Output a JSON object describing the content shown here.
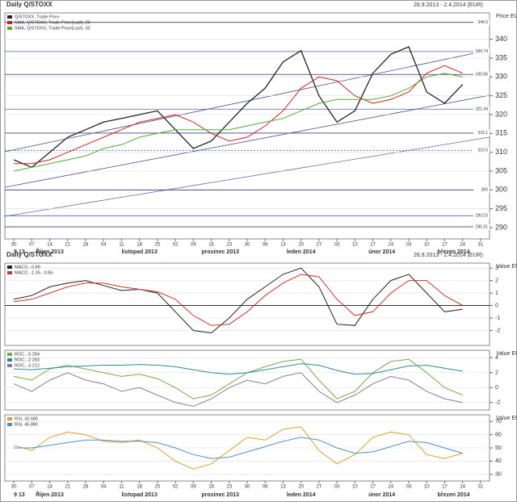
{
  "chart_data": [
    {
      "type": "line",
      "title": "Daily Q/STOXX",
      "subtitle": "26.9.2013 - 2.4.2014 (EUR)",
      "y_label": "Price EUR",
      "categories": [
        "30",
        "07",
        "14",
        "21",
        "28",
        "04",
        "11",
        "18",
        "25",
        "02",
        "09",
        "16",
        "23",
        "30",
        "06",
        "13",
        "20",
        "27",
        "03",
        "10",
        "17",
        "24",
        "03",
        "10",
        "17",
        "24",
        "31"
      ],
      "months": [
        "9 13",
        "Říjen 2013",
        "listopad 2013",
        "prosinec 2013",
        "leden 2014",
        "únor 2014",
        "březen 2014"
      ],
      "series": [
        {
          "name": "Q/STOXX, Trade Price",
          "color": "#222222",
          "values": [
            308,
            306,
            310,
            314,
            316,
            318,
            319,
            320,
            321,
            316,
            311,
            313,
            318,
            323,
            327,
            334,
            337,
            325,
            318,
            321,
            331,
            336,
            338,
            326,
            323,
            328,
            null
          ]
        },
        {
          "name": "SMA, Q/STOXX, Trade Price(Last), 20",
          "color": "#cc2222",
          "values": [
            307,
            307,
            308,
            310,
            312,
            314,
            316,
            318,
            319,
            320,
            318,
            315,
            313,
            314,
            317,
            321,
            327,
            330,
            329,
            325,
            323,
            324,
            326,
            331,
            333,
            331,
            null
          ]
        },
        {
          "name": "SMA, Q/STOXX, Trade Price(Last), 50",
          "color": "#55aa33",
          "values": [
            305,
            306,
            307,
            308,
            309,
            311,
            312,
            314,
            315,
            316,
            316,
            316,
            316,
            317,
            318,
            319,
            321,
            323,
            324,
            324,
            324,
            325,
            327,
            330,
            331,
            330,
            null
          ]
        }
      ],
      "levels": [
        344.5,
        336.74,
        330.66,
        321.44,
        315.1,
        310.5,
        300,
        293.15,
        290.21
      ],
      "ylim": [
        287,
        347
      ],
      "yticks": [
        290,
        295,
        300,
        305,
        310,
        315,
        320,
        325,
        330,
        335,
        340
      ],
      "grid": true
    },
    {
      "type": "line",
      "title": "Daily Q/STOXX",
      "subtitle": "26.9.2013 - 2.4.2014 (EUR)",
      "y_label": "Value EUR",
      "series": [
        {
          "name": "MACD, -0.89",
          "color": "#222222",
          "values": [
            0.5,
            0.8,
            1.5,
            1.8,
            2.0,
            1.6,
            1.2,
            1.3,
            1.0,
            -0.5,
            -2.0,
            -2.2,
            -1.0,
            0.5,
            1.5,
            2.5,
            3.0,
            1.5,
            -1.5,
            -1.6,
            0.5,
            2.0,
            2.5,
            1.0,
            -0.5,
            -0.3,
            null
          ]
        },
        {
          "name": "MACD, -1.35, -0.85",
          "color": "#cc3333",
          "values": [
            0.3,
            0.5,
            1.0,
            1.5,
            1.8,
            1.8,
            1.5,
            1.3,
            1.1,
            0.5,
            -0.8,
            -1.6,
            -1.5,
            -0.5,
            0.8,
            1.8,
            2.5,
            2.3,
            0.5,
            -0.8,
            -0.5,
            1.0,
            2.0,
            2.0,
            0.8,
            0.0,
            null
          ]
        }
      ],
      "ylim": [
        -3.2,
        3.4
      ],
      "yticks": [
        -2,
        -1,
        0,
        1,
        2,
        3
      ],
      "grid": true
    },
    {
      "type": "line",
      "y_label": "Value EUR",
      "series": [
        {
          "name": "ROC, -0.284",
          "color": "#77aa44",
          "values": [
            1.5,
            1.0,
            2.5,
            3.0,
            2.5,
            2.0,
            1.5,
            1.8,
            1.2,
            0.0,
            -1.5,
            -1.0,
            0.5,
            2.0,
            2.8,
            3.5,
            3.8,
            1.0,
            -1.5,
            -0.5,
            2.0,
            3.5,
            3.8,
            2.0,
            0.0,
            -1.0,
            null
          ]
        },
        {
          "name": "ROC, -2.283",
          "color": "#2a8a9a",
          "values": [
            2.5,
            2.4,
            2.6,
            2.8,
            2.9,
            3.0,
            3.0,
            3.1,
            3.0,
            2.8,
            2.4,
            2.0,
            1.8,
            2.0,
            2.4,
            2.8,
            3.2,
            3.0,
            2.3,
            1.8,
            1.9,
            2.4,
            2.9,
            3.0,
            2.6,
            2.2,
            null
          ]
        },
        {
          "name": "ROC, -3.212",
          "color": "#8a7a9a",
          "values": [
            0.5,
            -0.5,
            1.0,
            2.0,
            1.0,
            0.5,
            -0.5,
            0.0,
            -1.0,
            -2.0,
            -2.5,
            -1.5,
            0.0,
            1.0,
            0.5,
            1.5,
            2.0,
            -0.5,
            -2.0,
            -1.0,
            0.5,
            1.5,
            1.0,
            -0.5,
            -1.5,
            -2.0,
            null
          ]
        }
      ],
      "ylim": [
        -3,
        5
      ],
      "yticks": [
        -2,
        0,
        2,
        4
      ],
      "grid": true
    },
    {
      "type": "line",
      "y_label": "Value EUR",
      "categories": [
        "30",
        "07",
        "14",
        "21",
        "28",
        "04",
        "11",
        "18",
        "25",
        "02",
        "09",
        "16",
        "23",
        "30",
        "06",
        "13",
        "20",
        "27",
        "03",
        "10",
        "17",
        "24",
        "03",
        "10",
        "17",
        "24",
        "31"
      ],
      "months": [
        "9 13",
        "Říjen 2013",
        "listopad 2013",
        "prosinec 2013",
        "leden 2014",
        "únor 2014",
        "březen 2014"
      ],
      "series": [
        {
          "name": "RSI, 42.685",
          "color": "#d9a030",
          "values": [
            52,
            48,
            58,
            62,
            60,
            55,
            54,
            56,
            50,
            40,
            34,
            38,
            48,
            58,
            56,
            64,
            66,
            48,
            38,
            45,
            58,
            62,
            60,
            45,
            42,
            46,
            null
          ]
        },
        {
          "name": "RSI, 45.880",
          "color": "#4a90c0",
          "values": [
            50,
            50,
            52,
            54,
            56,
            56,
            55,
            55,
            54,
            50,
            45,
            42,
            43,
            47,
            51,
            55,
            58,
            56,
            50,
            46,
            47,
            51,
            55,
            54,
            50,
            46,
            null
          ]
        }
      ],
      "ylim": [
        25,
        75
      ],
      "yticks": [
        30,
        40,
        50,
        60,
        70
      ],
      "grid": true
    }
  ]
}
